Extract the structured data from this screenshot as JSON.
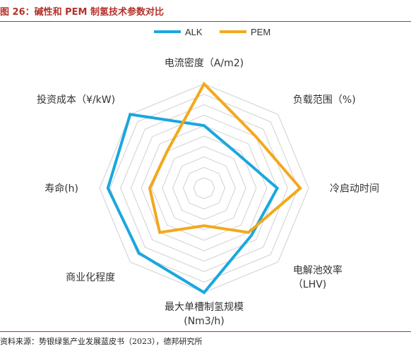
{
  "header": {
    "title": "图 26：碱性和 PEM 制氢技术参数对比"
  },
  "footer": {
    "source": "资料来源：势银绿氢产业发展蓝皮书（2023），德邦研究所"
  },
  "colors": {
    "ALK": "#1aa7de",
    "PEM": "#f2a91b",
    "grid": "#d0d0d0",
    "title": "#b5312b"
  },
  "chart_data": {
    "type": "radar",
    "axes": [
      {
        "lines": [
          "电流密度（A/m2)"
        ]
      },
      {
        "lines": [
          "负载范围（%)"
        ]
      },
      {
        "lines": [
          "冷启动时间"
        ]
      },
      {
        "lines": [
          "电解池效率",
          "（LHV)"
        ]
      },
      {
        "lines": [
          "最大单槽制氢规模",
          "(Nm3/h)"
        ]
      },
      {
        "lines": [
          "商业化程度"
        ]
      },
      {
        "lines": [
          "寿命(h)"
        ]
      },
      {
        "lines": [
          "投资成本（¥/kW)"
        ]
      }
    ],
    "levels": 5,
    "rmax": 5,
    "series": [
      {
        "name": "ALK",
        "values": [
          3.0,
          2.3,
          3.5,
          3.2,
          5.0,
          4.4,
          4.6,
          5.0
        ]
      },
      {
        "name": "PEM",
        "values": [
          5.0,
          3.5,
          4.6,
          3.0,
          1.8,
          3.0,
          2.6,
          2.5
        ]
      }
    ],
    "legend": "top"
  }
}
